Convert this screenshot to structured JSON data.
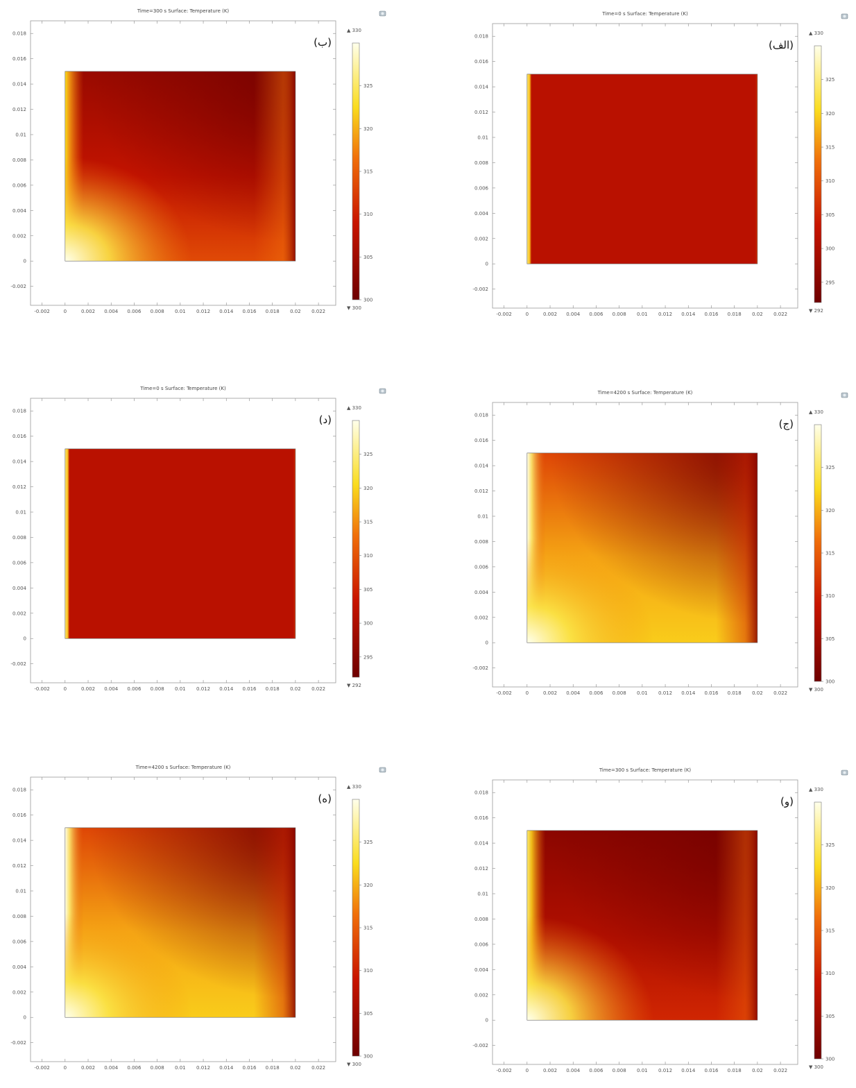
{
  "chart_data": [
    {
      "type": "heatmap",
      "id": "b",
      "panel_label": "(ب)",
      "title": "Time=300 s   Surface: Temperature (K)",
      "xticks": [
        "-0.002",
        "0",
        "0.002",
        "0.004",
        "0.006",
        "0.008",
        "0.01",
        "0.012",
        "0.014",
        "0.016",
        "0.018",
        "0.02",
        "0.022"
      ],
      "yticks": [
        "0.018",
        "0.016",
        "0.014",
        "0.012",
        "0.01",
        "0.008",
        "0.006",
        "0.004",
        "0.002",
        "0",
        "-0.002"
      ],
      "xlim": [
        -0.003,
        0.0235
      ],
      "ylim": [
        -0.0035,
        0.019
      ],
      "domain_x": [
        0,
        0.02
      ],
      "domain_y": [
        0,
        0.015
      ],
      "colorbar": {
        "max_label": "▲ 330",
        "min_label": "▼ 300",
        "ticks": [
          "325",
          "320",
          "315",
          "310",
          "305",
          "300"
        ],
        "range": [
          300,
          330
        ]
      },
      "field": {
        "hot_left": 0.75,
        "hot_bottom_left": 1.0,
        "bottom_band": 0.45,
        "right_edge": 0.55,
        "background": 0.18
      }
    },
    {
      "type": "heatmap",
      "id": "alef",
      "panel_label": "(الف)",
      "title": "Time=0 s   Surface: Temperature (K)",
      "xticks": [
        "-0.002",
        "0",
        "0.002",
        "0.004",
        "0.006",
        "0.008",
        "0.01",
        "0.012",
        "0.014",
        "0.016",
        "0.018",
        "0.02",
        "0.022"
      ],
      "yticks": [
        "0.018",
        "0.016",
        "0.014",
        "0.012",
        "0.01",
        "0.008",
        "0.006",
        "0.004",
        "0.002",
        "0",
        "-0.002"
      ],
      "xlim": [
        -0.003,
        0.0235
      ],
      "ylim": [
        -0.0035,
        0.019
      ],
      "domain_x": [
        0,
        0.02
      ],
      "domain_y": [
        0,
        0.015
      ],
      "colorbar": {
        "max_label": "▲ 330",
        "min_label": "▼ 292",
        "ticks": [
          "325",
          "320",
          "315",
          "310",
          "305",
          "300",
          "295"
        ],
        "range": [
          292,
          330
        ]
      },
      "field": {
        "uniform": 0.25,
        "left_strip": 0.85
      }
    },
    {
      "type": "heatmap",
      "id": "dal",
      "panel_label": "(د)",
      "title": "Time=0 s   Surface: Temperature (K)",
      "xticks": [
        "-0.002",
        "0",
        "0.002",
        "0.004",
        "0.006",
        "0.008",
        "0.01",
        "0.012",
        "0.014",
        "0.016",
        "0.018",
        "0.02",
        "0.022"
      ],
      "yticks": [
        "0.018",
        "0.016",
        "0.014",
        "0.012",
        "0.01",
        "0.008",
        "0.006",
        "0.004",
        "0.002",
        "0",
        "-0.002"
      ],
      "xlim": [
        -0.003,
        0.0235
      ],
      "ylim": [
        -0.0035,
        0.019
      ],
      "domain_x": [
        0,
        0.02
      ],
      "domain_y": [
        0,
        0.015
      ],
      "colorbar": {
        "max_label": "▲ 330",
        "min_label": "▼ 292",
        "ticks": [
          "325",
          "320",
          "315",
          "310",
          "305",
          "300",
          "295"
        ],
        "range": [
          292,
          330
        ]
      },
      "field": {
        "uniform": 0.25,
        "left_strip": 0.85
      }
    },
    {
      "type": "heatmap",
      "id": "jim",
      "panel_label": "(ج)",
      "title": "Time=4200 s   Surface: Temperature (K)",
      "xticks": [
        "-0.002",
        "0",
        "0.002",
        "0.004",
        "0.006",
        "0.008",
        "0.01",
        "0.012",
        "0.014",
        "0.016",
        "0.018",
        "0.02",
        "0.022"
      ],
      "yticks": [
        "0.018",
        "0.016",
        "0.014",
        "0.012",
        "0.01",
        "0.008",
        "0.006",
        "0.004",
        "0.002",
        "0",
        "-0.002"
      ],
      "xlim": [
        -0.003,
        0.0235
      ],
      "ylim": [
        -0.0035,
        0.019
      ],
      "domain_x": [
        0,
        0.02
      ],
      "domain_y": [
        0,
        0.015
      ],
      "colorbar": {
        "max_label": "▲ 330",
        "min_label": "▼ 300",
        "ticks": [
          "325",
          "320",
          "315",
          "310",
          "305",
          "300"
        ],
        "range": [
          300,
          330
        ]
      },
      "field": {
        "hot_left": 1.0,
        "hot_bottom_left": 1.0,
        "bottom_band": 0.72,
        "right_edge": 0.35,
        "background": 0.55
      }
    },
    {
      "type": "heatmap",
      "id": "he",
      "panel_label": "(ه)",
      "title": "Time=4200 s   Surface: Temperature (K)",
      "xticks": [
        "-0.002",
        "0",
        "0.002",
        "0.004",
        "0.006",
        "0.008",
        "0.01",
        "0.012",
        "0.014",
        "0.016",
        "0.018",
        "0.02",
        "0.022"
      ],
      "yticks": [
        "0.018",
        "0.016",
        "0.014",
        "0.012",
        "0.01",
        "0.008",
        "0.006",
        "0.004",
        "0.002",
        "0",
        "-0.002"
      ],
      "xlim": [
        -0.003,
        0.0235
      ],
      "ylim": [
        -0.0035,
        0.019
      ],
      "domain_x": [
        0,
        0.02
      ],
      "domain_y": [
        0,
        0.015
      ],
      "colorbar": {
        "max_label": "▲ 330",
        "min_label": "▼ 300",
        "ticks": [
          "325",
          "320",
          "315",
          "310",
          "305",
          "300"
        ],
        "range": [
          300,
          330
        ]
      },
      "field": {
        "hot_left": 1.0,
        "hot_bottom_left": 1.0,
        "bottom_band": 0.72,
        "right_edge": 0.35,
        "background": 0.55
      }
    },
    {
      "type": "heatmap",
      "id": "vav",
      "panel_label": "(و)",
      "title": "Time=300 s   Surface: Temperature (K)",
      "xticks": [
        "-0.002",
        "0",
        "0.002",
        "0.004",
        "0.006",
        "0.008",
        "0.01",
        "0.012",
        "0.014",
        "0.016",
        "0.018",
        "0.02",
        "0.022"
      ],
      "yticks": [
        "0.018",
        "0.016",
        "0.014",
        "0.012",
        "0.01",
        "0.008",
        "0.006",
        "0.004",
        "0.002",
        "0",
        "-0.002"
      ],
      "xlim": [
        -0.003,
        0.0235
      ],
      "ylim": [
        -0.0035,
        0.019
      ],
      "domain_x": [
        0,
        0.02
      ],
      "domain_y": [
        0,
        0.015
      ],
      "colorbar": {
        "max_label": "▲ 330",
        "min_label": "▼ 300",
        "ticks": [
          "325",
          "320",
          "315",
          "310",
          "305",
          "300"
        ],
        "range": [
          300,
          330
        ]
      },
      "field": {
        "hot_left": 0.85,
        "hot_bottom_left": 1.0,
        "bottom_band": 0.35,
        "right_edge": 0.5,
        "background": 0.12
      }
    }
  ]
}
